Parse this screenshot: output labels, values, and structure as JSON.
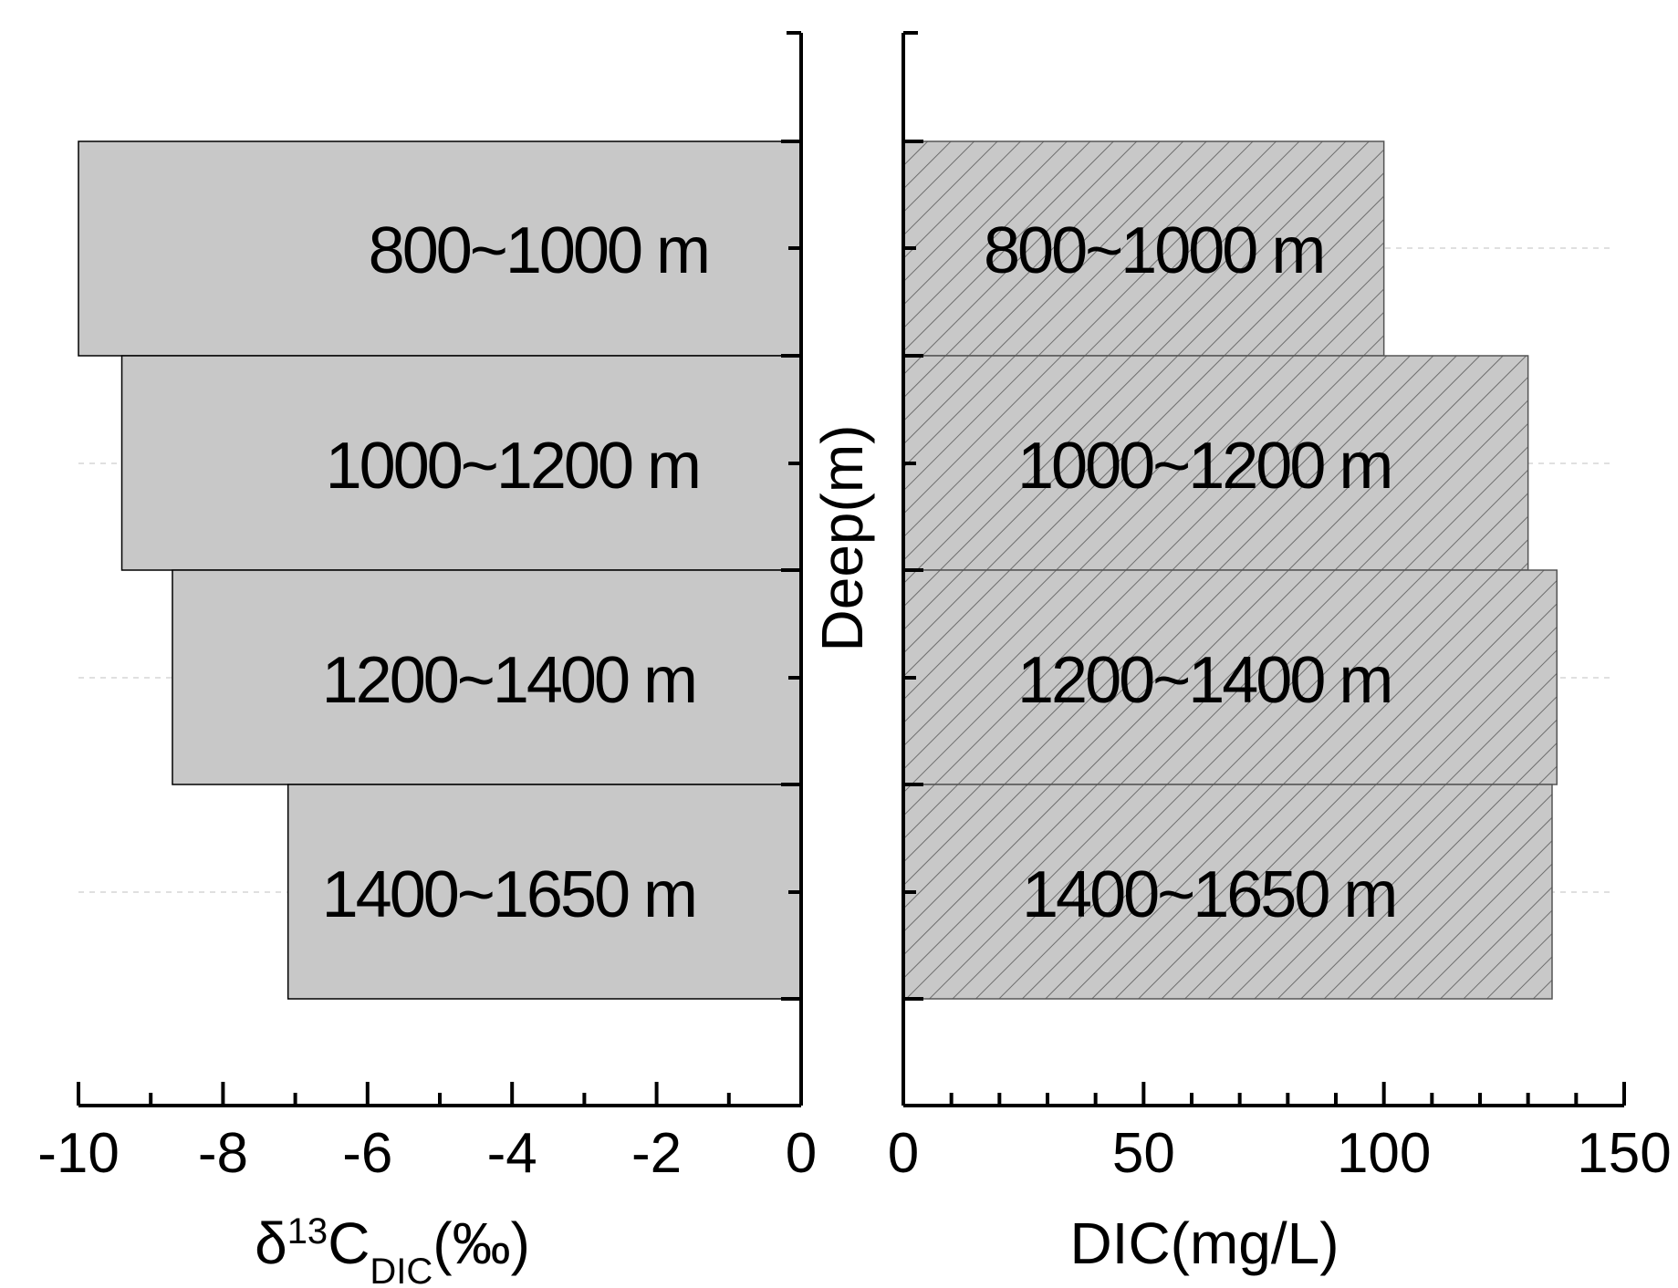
{
  "chart_data": [
    {
      "type": "bar",
      "orientation": "horizontal",
      "categories": [
        "800~1000 m",
        "1000~1200 m",
        "1200~1400 m",
        "1400~1650 m"
      ],
      "values": [
        -10.0,
        -9.4,
        -8.7,
        -7.1
      ],
      "xlim": [
        -10,
        0
      ],
      "xticks": [
        "-10",
        "-8",
        "-6",
        "-4",
        "-2",
        "0"
      ],
      "xlabel": {
        "main": "δ",
        "sup": "13",
        "mid": "C",
        "sub": "DIC",
        "tail": "(‰)"
      },
      "bar_color": "#c8c8c8",
      "hatch": false
    },
    {
      "type": "bar",
      "orientation": "horizontal",
      "categories": [
        "800~1000 m",
        "1000~1200 m",
        "1200~1400 m",
        "1400~1650 m"
      ],
      "values": [
        100,
        130,
        136,
        135
      ],
      "xlim": [
        0,
        150
      ],
      "xticks": [
        "0",
        "50",
        "100",
        "150"
      ],
      "xlabel": "DIC(mg/L)",
      "bar_color": "#c8c8c8",
      "hatch": true
    }
  ],
  "shared_ylabel": "Deep(m)",
  "grid": "dashed horizontal"
}
